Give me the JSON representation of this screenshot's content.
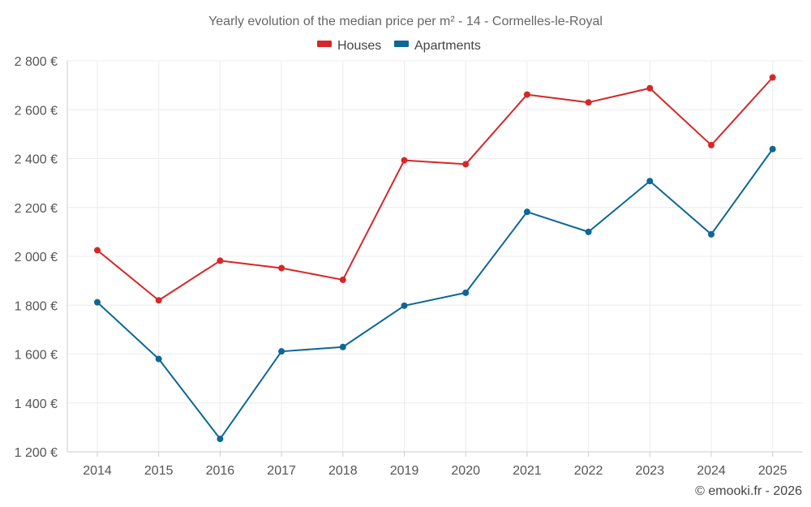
{
  "chart_data": {
    "type": "line",
    "title": "Yearly evolution of the median price per m² - 14 - Cormelles-le-Royal",
    "categories": [
      "2014",
      "2015",
      "2016",
      "2017",
      "2018",
      "2019",
      "2020",
      "2021",
      "2022",
      "2023",
      "2024",
      "2025"
    ],
    "series": [
      {
        "name": "Houses",
        "color": "#d62728",
        "values": [
          2025,
          1820,
          1982,
          1952,
          1904,
          2393,
          2377,
          2662,
          2630,
          2688,
          2455,
          2732
        ]
      },
      {
        "name": "Apartments",
        "color": "#0e6796",
        "values": [
          1812,
          1580,
          1253,
          1611,
          1629,
          1798,
          1851,
          2182,
          2100,
          2308,
          2090,
          2439
        ]
      }
    ],
    "ylim": [
      1200,
      2800
    ],
    "yticks": [
      1200,
      1400,
      1600,
      1800,
      2000,
      2200,
      2400,
      2600,
      2800
    ],
    "ytick_labels": [
      "1 200 €",
      "1 400 €",
      "1 600 €",
      "1 800 €",
      "2 000 €",
      "2 200 €",
      "2 400 €",
      "2 600 €",
      "2 800 €"
    ],
    "xlabel": "",
    "ylabel": "",
    "grid": true,
    "legend_position": "top-center"
  },
  "credit": "© emooki.fr - 2026"
}
